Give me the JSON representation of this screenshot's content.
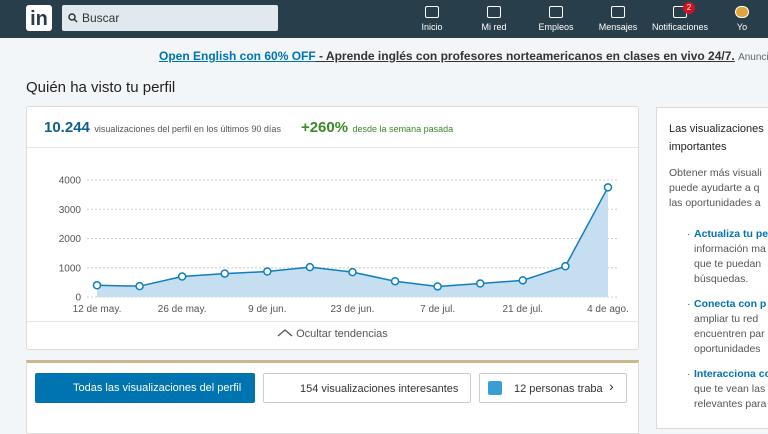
{
  "nav": {
    "logo": "in",
    "search_placeholder": "Buscar",
    "items": [
      "Inicio",
      "Mi red",
      "Empleos",
      "Mensajes",
      "Notificaciones",
      "Yo"
    ],
    "notification_badge": "2"
  },
  "ad": {
    "link": "Open English con 60% OFF",
    "text": " - Aprende inglés con profesores norteamericanos en clases en vivo 24/7.",
    "label": "Anuncio",
    "more": "···"
  },
  "heading": "Quién ha visto tu perfil",
  "stats": {
    "views": "10.244",
    "views_text": "visualizaciones del perfil en los últimos 90 días",
    "change": "+260%",
    "change_text": "desde la semana pasada"
  },
  "chart_data": {
    "type": "line",
    "categories": [
      "12 de may.",
      null,
      "26 de may.",
      null,
      "9 de jun.",
      null,
      "23 de jun.",
      null,
      "7 de jul.",
      null,
      "21 de jul.",
      null,
      "4 de ago."
    ],
    "values": [
      400,
      370,
      700,
      800,
      870,
      1020,
      850,
      540,
      360,
      460,
      570,
      1050,
      3750
    ],
    "ylim": [
      0,
      4000
    ],
    "yticks": [
      0,
      1000,
      2000,
      3000,
      4000
    ],
    "grid": true,
    "color": "#0e7ec0",
    "fill": "#c5dff0"
  },
  "toggle": "Ocultar tendencias",
  "tabs": [
    "Todas las visualizaciones del perfil",
    "154 visualizaciones interesantes",
    "12 personas traba"
  ],
  "side": {
    "title": [
      "Las visualizaciones",
      "importantes"
    ],
    "intro": [
      "Obtener más visuali",
      "puede ayudarte a q",
      "las oportunidades a"
    ],
    "tips": [
      {
        "title": "Actualiza tu pe",
        "lines": [
          "información ma",
          "que te puedan",
          "búsquedas."
        ]
      },
      {
        "title": "Conecta con p",
        "lines": [
          "ampliar tu red",
          "encuentren par",
          "oportunidades"
        ]
      },
      {
        "title": "Interacciona co",
        "lines": [
          "que te vean las",
          "relevantes para"
        ]
      }
    ]
  }
}
